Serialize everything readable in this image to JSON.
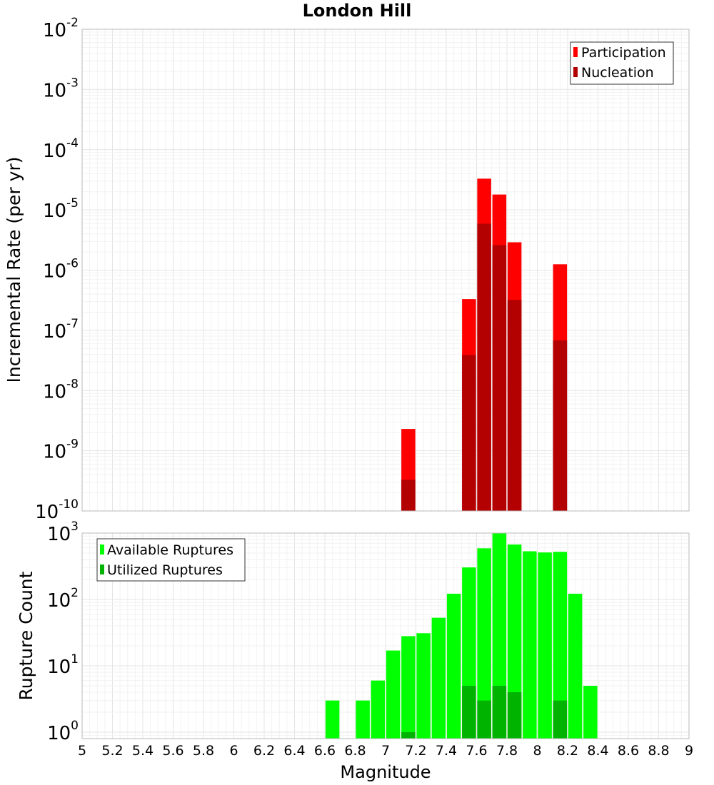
{
  "chart_data": [
    {
      "type": "bar",
      "title": "London Hill",
      "xlabel": "",
      "ylabel": "Incremental Rate (per yr)",
      "yscale": "log",
      "ylim": [
        1e-10,
        0.01
      ],
      "xlim": [
        5,
        9
      ],
      "ytick_exponents": [
        "-10",
        "-9",
        "-8",
        "-7",
        "-6",
        "-5",
        "-4",
        "-3",
        "-2"
      ],
      "ytick_base": "10",
      "legend_position": "top-right",
      "grid": true,
      "series": [
        {
          "name": "Participation",
          "color": "#ff0000",
          "x": [
            7.15,
            7.55,
            7.65,
            7.75,
            7.85,
            8.15
          ],
          "values": [
            2.3e-09,
            3.3e-07,
            3.3e-05,
            1.8e-05,
            2.9e-06,
            1.25e-06
          ]
        },
        {
          "name": "Nucleation",
          "color": "#b30000",
          "x": [
            7.15,
            7.55,
            7.65,
            7.75,
            7.85,
            8.15
          ],
          "values": [
            3.3e-10,
            3.9e-08,
            5.9e-06,
            2.6e-06,
            3.2e-07,
            6.8e-08
          ]
        }
      ]
    },
    {
      "type": "bar",
      "title": "",
      "xlabel": "Magnitude",
      "ylabel": "Rupture Count",
      "yscale": "log",
      "ylim": [
        0.8,
        1000
      ],
      "xlim": [
        5,
        9
      ],
      "ytick_exponents": [
        "0",
        "1",
        "2",
        "3"
      ],
      "ytick_base": "10",
      "xticks": [
        "5",
        "5.2",
        "5.4",
        "5.6",
        "5.8",
        "6",
        "6.2",
        "6.4",
        "6.6",
        "6.8",
        "7",
        "7.2",
        "7.4",
        "7.6",
        "7.8",
        "8",
        "8.2",
        "8.4",
        "8.6",
        "8.8",
        "9"
      ],
      "legend_position": "top-left",
      "grid": true,
      "series": [
        {
          "name": "Available Ruptures",
          "color": "#00ff00",
          "x": [
            6.65,
            6.85,
            6.95,
            7.05,
            7.15,
            7.25,
            7.35,
            7.45,
            7.55,
            7.65,
            7.75,
            7.85,
            7.95,
            8.05,
            8.15,
            8.25,
            8.35
          ],
          "values": [
            3,
            3,
            6,
            17,
            28,
            31,
            53,
            122,
            304,
            590,
            1000,
            673,
            532,
            511,
            522,
            122,
            5
          ]
        },
        {
          "name": "Utilized Ruptures",
          "color": "#00b300",
          "x": [
            7.15,
            7.55,
            7.65,
            7.75,
            7.85,
            8.15
          ],
          "values": [
            1,
            5,
            3,
            5,
            4,
            3
          ]
        }
      ]
    }
  ]
}
